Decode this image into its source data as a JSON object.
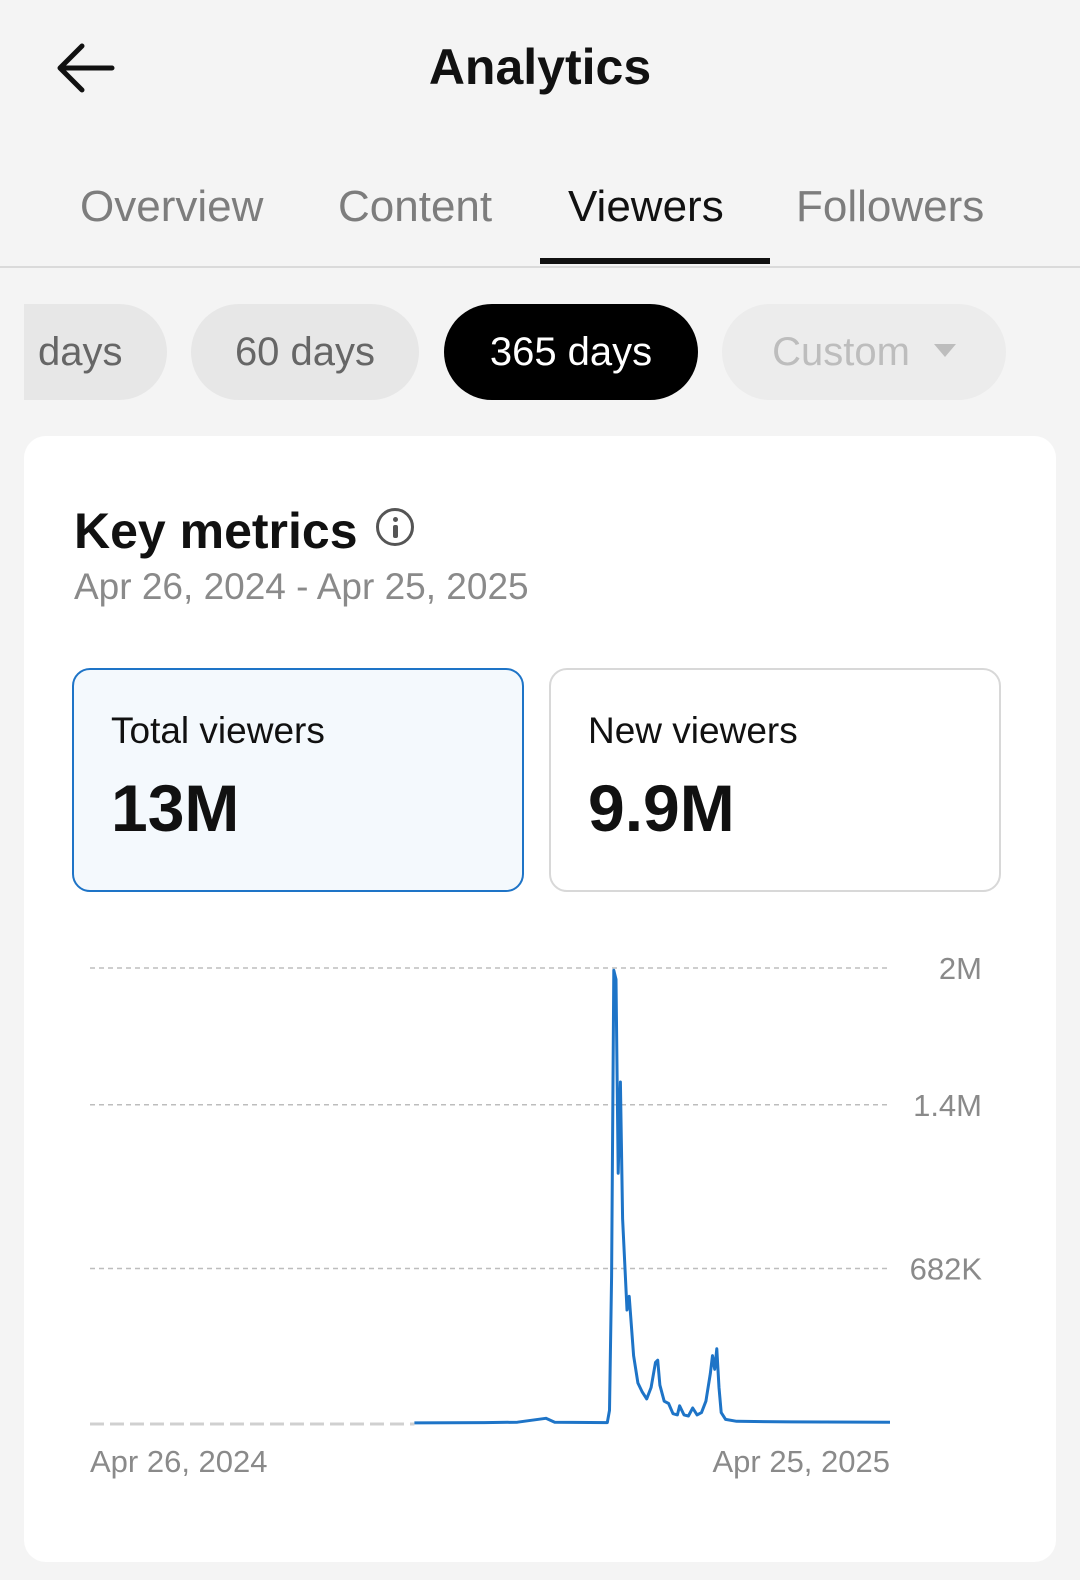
{
  "header": {
    "title": "Analytics",
    "back_icon": "arrow-left-icon"
  },
  "tabs": [
    {
      "label": "Overview",
      "active": false
    },
    {
      "label": "Content",
      "active": false
    },
    {
      "label": "Viewers",
      "active": true
    },
    {
      "label": "Followers",
      "active": false
    }
  ],
  "ranges": {
    "cut_label": "days",
    "sixty": "60 days",
    "year": "365 days",
    "custom": "Custom",
    "selected": "365 days"
  },
  "card": {
    "title": "Key metrics",
    "range_text": "Apr 26, 2024 - Apr 25, 2025",
    "metrics": [
      {
        "label": "Total viewers",
        "value": "13M",
        "selected": true
      },
      {
        "label": "New viewers",
        "value": "9.9M",
        "selected": false
      }
    ]
  },
  "chart_data": {
    "type": "line",
    "series_color": "#1e74c7",
    "grid": true,
    "y_ticks": [
      "2M",
      "1.4M",
      "682K"
    ],
    "y_tick_values": [
      2000000,
      1400000,
      682000
    ],
    "ylim": [
      0,
      2000000
    ],
    "x_labels": [
      "Apr 26, 2024",
      "Apr 25, 2025"
    ],
    "x_range_days": [
      0,
      365
    ],
    "flat_until_day": 148,
    "series": [
      {
        "points": [
          [
            148,
            5000
          ],
          [
            180,
            6000
          ],
          [
            195,
            8000
          ],
          [
            208,
            25000
          ],
          [
            212,
            8000
          ],
          [
            236,
            6000
          ],
          [
            237,
            60000
          ],
          [
            238,
            650000
          ],
          [
            239,
            1990000
          ],
          [
            240,
            1950000
          ],
          [
            241,
            1100000
          ],
          [
            242,
            1500000
          ],
          [
            243,
            900000
          ],
          [
            245,
            500000
          ],
          [
            246,
            560000
          ],
          [
            248,
            300000
          ],
          [
            250,
            180000
          ],
          [
            252,
            140000
          ],
          [
            254,
            110000
          ],
          [
            256,
            160000
          ],
          [
            258,
            270000
          ],
          [
            259,
            280000
          ],
          [
            260,
            170000
          ],
          [
            262,
            100000
          ],
          [
            264,
            90000
          ],
          [
            266,
            45000
          ],
          [
            268,
            40000
          ],
          [
            269,
            80000
          ],
          [
            271,
            40000
          ],
          [
            273,
            35000
          ],
          [
            275,
            70000
          ],
          [
            277,
            40000
          ],
          [
            279,
            50000
          ],
          [
            281,
            100000
          ],
          [
            283,
            220000
          ],
          [
            284,
            300000
          ],
          [
            285,
            240000
          ],
          [
            286,
            330000
          ],
          [
            287,
            160000
          ],
          [
            288,
            50000
          ],
          [
            290,
            20000
          ],
          [
            295,
            12000
          ],
          [
            320,
            9000
          ],
          [
            365,
            8000
          ]
        ]
      }
    ]
  }
}
